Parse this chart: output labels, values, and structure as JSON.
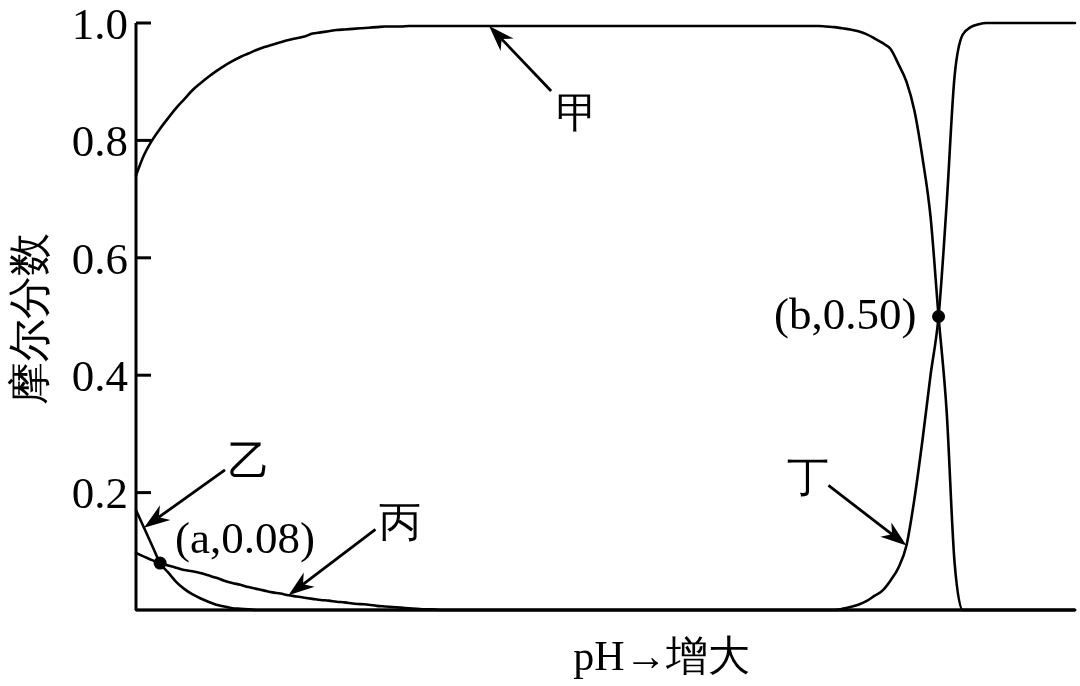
{
  "chart_data": {
    "type": "line",
    "xlabel": "pH→增大",
    "ylabel": "摩尔分数",
    "categories": [
      null,
      null,
      null,
      null,
      null,
      null,
      null,
      null,
      null,
      null,
      null,
      null,
      null,
      null,
      null,
      null,
      null,
      null,
      null,
      null,
      null,
      null,
      null,
      null,
      null,
      null,
      null,
      null,
      null,
      null,
      null,
      null,
      null,
      null,
      null,
      null,
      null,
      null,
      null,
      null,
      null,
      null,
      null,
      null,
      null,
      null,
      null,
      null,
      null,
      null,
      null,
      null,
      null,
      null,
      null,
      null,
      null,
      null,
      null,
      null,
      null,
      null,
      null,
      null,
      null,
      null,
      null,
      null,
      null,
      null,
      null,
      null,
      null,
      null,
      null,
      null,
      null,
      null,
      null,
      null,
      null,
      null,
      null,
      null,
      null,
      null,
      null,
      null,
      null,
      null,
      null,
      null,
      null,
      null,
      null,
      null,
      null,
      null,
      null,
      null,
      null,
      null,
      null,
      null,
      null,
      null,
      null,
      null,
      null,
      null,
      null,
      null,
      null,
      null,
      null,
      null,
      null,
      null
    ],
    "ylim": [
      0,
      1
    ],
    "yticks": [
      0.2,
      0.4,
      0.6,
      0.8,
      {
        "value": 1,
        "label": "1.0"
      }
    ],
    "series": [
      {
        "name": "甲",
        "color": "#000000",
        "values": [
          0.74,
          0.775,
          0.8,
          0.82,
          0.838,
          0.855,
          0.87,
          0.885,
          0.897,
          0.908,
          0.918,
          0.927,
          0.935,
          0.942,
          0.948,
          0.954,
          0.959,
          0.963,
          0.967,
          0.971,
          0.974,
          0.977,
          0.982,
          0.984,
          0.986,
          0.988,
          0.989,
          0.99,
          0.991,
          0.992,
          0.993,
          0.994,
          0.994,
          0.994,
          0.995,
          0.995,
          0.995,
          0.995,
          0.995,
          0.995,
          0.995,
          0.995,
          0.995,
          0.995,
          0.995,
          0.995,
          0.995,
          0.995,
          0.995,
          0.995,
          0.995,
          0.995,
          0.995,
          0.995,
          0.995,
          0.995,
          0.995,
          0.995,
          0.995,
          0.995,
          0.995,
          0.995,
          0.995,
          0.995,
          0.995,
          0.995,
          0.995,
          0.995,
          0.995,
          0.995,
          0.995,
          0.995,
          0.995,
          0.995,
          0.995,
          0.995,
          0.995,
          0.995,
          0.995,
          0.995,
          0.995,
          0.995,
          0.995,
          0.995,
          0.995,
          0.995,
          0.994,
          0.993,
          0.991,
          0.989,
          0.986,
          0.981,
          0.974,
          0.966,
          0.956,
          0.93,
          0.9,
          0.85,
          0.77,
          0.67,
          0.5,
          0.34,
          0.08,
          0,
          0,
          0,
          0,
          0,
          0,
          0,
          0,
          0,
          0,
          0,
          0,
          0,
          0,
          0
        ]
      },
      {
        "name": "乙",
        "color": "#000000",
        "values": [
          0.17,
          0.14,
          0.11,
          0.08,
          0.064,
          0.048,
          0.036,
          0.027,
          0.02,
          0.014,
          0.009,
          0.006,
          0.003,
          0.002,
          0.001,
          0,
          0,
          0,
          0,
          0,
          0,
          0,
          0,
          0,
          0,
          0,
          0,
          0,
          0,
          0,
          0,
          0,
          0,
          0,
          0,
          0,
          0,
          0,
          0,
          0,
          0,
          0,
          0,
          0,
          0,
          0,
          0,
          0,
          0,
          0,
          0,
          0,
          0,
          0,
          0,
          0,
          0,
          0,
          0,
          0,
          0,
          0,
          0,
          0,
          0,
          0,
          0,
          0,
          0,
          0,
          0,
          0,
          0,
          0,
          0,
          0,
          0,
          0,
          0,
          0,
          0,
          0,
          0,
          0,
          0,
          0,
          0,
          0,
          0,
          0,
          0,
          0,
          0,
          0,
          0,
          0,
          0,
          0,
          0,
          0,
          0,
          0,
          0,
          0,
          0,
          0,
          0,
          0,
          0,
          0,
          0,
          0,
          0,
          0,
          0,
          0,
          0,
          0
        ]
      },
      {
        "name": "丙",
        "color": "#000000",
        "values": [
          0.097,
          0.091,
          0.085,
          0.08,
          0.076,
          0.072,
          0.068,
          0.066,
          0.063,
          0.059,
          0.055,
          0.05,
          0.046,
          0.043,
          0.039,
          0.036,
          0.033,
          0.03,
          0.028,
          0.025,
          0.023,
          0.021,
          0.019,
          0.017,
          0.016,
          0.014,
          0.013,
          0.011,
          0.01,
          0.009,
          0.007,
          0.006,
          0.005,
          0.004,
          0.003,
          0.002,
          0.001,
          0.001,
          0,
          0,
          0,
          0,
          0,
          0,
          0,
          0,
          0,
          0,
          0,
          0,
          0,
          0,
          0,
          0,
          0,
          0,
          0,
          0,
          0,
          0,
          0,
          0,
          0,
          0,
          0,
          0,
          0,
          0,
          0,
          0,
          0,
          0,
          0,
          0,
          0,
          0,
          0,
          0,
          0,
          0,
          0,
          0,
          0,
          0,
          0,
          0,
          0,
          0,
          0,
          0,
          0,
          0,
          0,
          0,
          0,
          0,
          0,
          0,
          0,
          0,
          0,
          0,
          0,
          0,
          0,
          0,
          0,
          0,
          0,
          0,
          0,
          0,
          0,
          0,
          0,
          0,
          0,
          0
        ]
      },
      {
        "name": "丁",
        "color": "#000000",
        "values": [
          0,
          0,
          0,
          0,
          0,
          0,
          0,
          0,
          0,
          0,
          0,
          0,
          0,
          0,
          0,
          0,
          0,
          0,
          0,
          0,
          0,
          0,
          0,
          0,
          0,
          0,
          0,
          0,
          0,
          0,
          0,
          0,
          0,
          0,
          0,
          0,
          0,
          0,
          0,
          0,
          0,
          0,
          0,
          0,
          0,
          0,
          0,
          0,
          0,
          0,
          0,
          0,
          0,
          0,
          0,
          0,
          0,
          0,
          0,
          0,
          0,
          0,
          0,
          0,
          0,
          0,
          0,
          0,
          0,
          0,
          0,
          0,
          0,
          0,
          0,
          0,
          0,
          0,
          0,
          0,
          0,
          0,
          0,
          0,
          0,
          0,
          0,
          0,
          0.002,
          0.005,
          0.009,
          0.015,
          0.024,
          0.033,
          0.05,
          0.072,
          0.11,
          0.19,
          0.29,
          0.4,
          0.5,
          0.69,
          0.91,
          0.98,
          0.993,
          0.998,
          1,
          1,
          1,
          1,
          1,
          1,
          1,
          1,
          1,
          1,
          1,
          1
        ]
      },
      {
        "type": "scatter",
        "marker": "circle",
        "color": "#000000",
        "values": [
          null,
          null,
          null,
          0.08,
          null,
          null,
          null,
          null,
          null,
          null,
          null,
          null,
          null,
          null,
          null,
          null,
          null,
          null,
          null,
          null,
          null,
          null,
          null,
          null,
          null,
          null,
          null,
          null,
          null,
          null,
          null,
          null,
          null,
          null,
          null,
          null,
          null,
          null,
          null,
          null,
          null,
          null,
          null,
          null,
          null,
          null,
          null,
          null,
          null,
          null,
          null,
          null,
          null,
          null,
          null,
          null,
          null,
          null,
          null,
          null,
          null,
          null,
          null,
          null,
          null,
          null,
          null,
          null,
          null,
          null,
          null,
          null,
          null,
          null,
          null,
          null,
          null,
          null,
          null,
          null,
          null,
          null,
          null,
          null,
          null,
          null,
          null,
          null,
          null,
          null,
          null,
          null,
          null,
          null,
          null,
          null,
          null,
          null,
          null,
          null,
          0.5,
          null,
          null,
          null,
          null,
          null,
          null,
          null,
          null,
          null,
          null,
          null,
          null,
          null,
          null,
          null,
          null,
          null
        ]
      }
    ],
    "annotations": [
      "(a,0.08)",
      "(b,0.50)"
    ]
  }
}
